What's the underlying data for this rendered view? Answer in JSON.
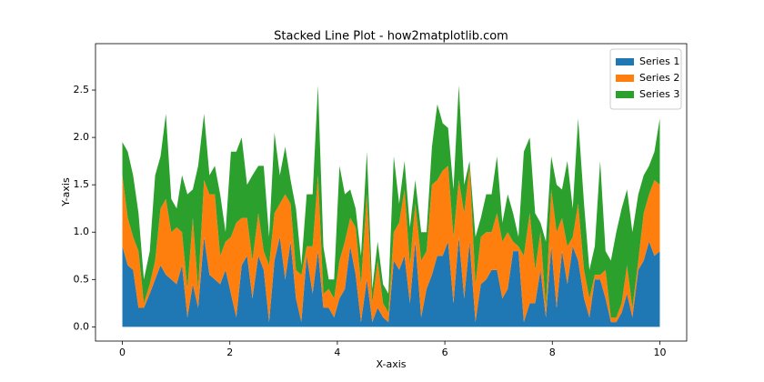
{
  "chart_data": {
    "type": "stackplot",
    "title": "Stacked Line Plot - how2matplotlib.com",
    "x_label": "X-axis",
    "y_label": "Y-axis",
    "x": [
      0,
      0.1,
      0.2,
      0.3,
      0.4,
      0.51,
      0.61,
      0.71,
      0.81,
      0.91,
      1.01,
      1.11,
      1.21,
      1.31,
      1.41,
      1.52,
      1.62,
      1.72,
      1.82,
      1.92,
      2.02,
      2.12,
      2.22,
      2.32,
      2.42,
      2.53,
      2.63,
      2.73,
      2.83,
      2.93,
      3.03,
      3.13,
      3.23,
      3.33,
      3.43,
      3.54,
      3.64,
      3.74,
      3.84,
      3.94,
      4.04,
      4.14,
      4.24,
      4.34,
      4.44,
      4.55,
      4.65,
      4.75,
      4.85,
      4.95,
      5.05,
      5.15,
      5.25,
      5.35,
      5.45,
      5.56,
      5.66,
      5.76,
      5.86,
      5.96,
      6.06,
      6.16,
      6.26,
      6.36,
      6.46,
      6.57,
      6.67,
      6.77,
      6.87,
      6.97,
      7.07,
      7.17,
      7.27,
      7.37,
      7.47,
      7.58,
      7.68,
      7.78,
      7.88,
      7.98,
      8.08,
      8.18,
      8.28,
      8.38,
      8.48,
      8.59,
      8.69,
      8.79,
      8.89,
      8.99,
      9.09,
      9.19,
      9.29,
      9.39,
      9.49,
      9.6,
      9.7,
      9.8,
      9.9,
      10
    ],
    "series": [
      {
        "name": "Series 1",
        "color": "#1f77b4",
        "values": [
          0.85,
          0.65,
          0.6,
          0.2,
          0.2,
          0.35,
          0.5,
          0.65,
          0.55,
          0.5,
          0.45,
          0.65,
          0.1,
          0.45,
          0.2,
          0.95,
          0.55,
          0.5,
          0.45,
          0.6,
          0.35,
          0.1,
          0.65,
          0.75,
          0.3,
          0.75,
          0.6,
          0.05,
          0.7,
          0.95,
          0.5,
          0.9,
          0.3,
          0.05,
          0.75,
          0.35,
          0.8,
          0.2,
          0.2,
          0.1,
          0.3,
          0.4,
          0.85,
          0.55,
          0.05,
          0.5,
          0.05,
          0.2,
          0.1,
          0.05,
          0.7,
          0.6,
          0.75,
          0.25,
          0.9,
          0.1,
          0.4,
          0.55,
          0.75,
          0.75,
          0.9,
          0.25,
          0.95,
          0.3,
          0.9,
          0.05,
          0.45,
          0.5,
          0.6,
          0.6,
          0.3,
          0.4,
          0.8,
          0.8,
          0.05,
          0.25,
          0.25,
          0.6,
          0.1,
          0.85,
          0.2,
          0.8,
          0.45,
          0.85,
          0.7,
          0.3,
          0.1,
          0.5,
          0.5,
          0.3,
          0.05,
          0.05,
          0.15,
          0.35,
          0.1,
          0.6,
          0.7,
          0.9,
          0.75,
          0.8
        ]
      },
      {
        "name": "Series 2",
        "color": "#ff7f0e",
        "values": [
          0.75,
          0.5,
          0.35,
          0.6,
          0.05,
          0.1,
          0.2,
          0.6,
          0.8,
          0.5,
          0.6,
          0.35,
          0.3,
          0.7,
          0.2,
          0.6,
          0.85,
          0.9,
          0.3,
          0.3,
          0.6,
          1.0,
          0.5,
          0.4,
          0.4,
          0.45,
          0.2,
          0.6,
          0.5,
          0.35,
          0.9,
          0.4,
          0.3,
          0.5,
          0.1,
          0.5,
          0.8,
          0.15,
          0.2,
          0.2,
          0.4,
          0.5,
          0.3,
          0.5,
          0.4,
          0.9,
          0.2,
          0.5,
          0.15,
          0.1,
          0.3,
          0.5,
          0.7,
          0.4,
          0.4,
          0.6,
          0.4,
          0.95,
          0.8,
          0.9,
          0.8,
          0.7,
          0.6,
          0.9,
          0.8,
          0.4,
          0.5,
          0.5,
          0.4,
          0.6,
          0.6,
          0.6,
          0.1,
          0.05,
          0.7,
          0.95,
          0.35,
          0.4,
          0.1,
          0.6,
          0.8,
          0.35,
          0.4,
          0.1,
          0.6,
          0.3,
          0.2,
          0.05,
          0.05,
          0.3,
          0.05,
          0.05,
          0.1,
          0.3,
          0.1,
          0.1,
          0.5,
          0.5,
          0.8,
          0.7
        ]
      },
      {
        "name": "Series 3",
        "color": "#2ca02c",
        "values": [
          0.35,
          0.7,
          0.65,
          0.4,
          0.25,
          0.35,
          0.9,
          0.55,
          0.9,
          0.35,
          0.2,
          0.6,
          1.0,
          0.3,
          1.3,
          0.7,
          0.2,
          0.3,
          0.65,
          0.1,
          0.9,
          0.75,
          0.85,
          0.35,
          0.9,
          0.5,
          0.9,
          0.3,
          0.85,
          0.3,
          0.5,
          0.25,
          0.65,
          0.1,
          0.55,
          0.55,
          0.95,
          0.5,
          0.1,
          0.2,
          1.0,
          0.5,
          0.3,
          0.2,
          0.3,
          0.45,
          0.15,
          0.2,
          0.2,
          0.2,
          0.8,
          0.2,
          0.3,
          0.4,
          0.25,
          0.3,
          0.2,
          0.4,
          0.8,
          0.5,
          0.4,
          0.5,
          1.0,
          0.3,
          0.05,
          0.5,
          0.2,
          0.4,
          0.4,
          0.6,
          0.2,
          0.4,
          0.3,
          0.1,
          1.1,
          0.8,
          0.6,
          0.1,
          0.7,
          0.35,
          0.5,
          0.3,
          0.9,
          0.3,
          0.9,
          0.7,
          0.3,
          0.3,
          1.2,
          0.2,
          0.6,
          0.9,
          1.0,
          0.8,
          0.8,
          0.7,
          0.4,
          0.3,
          0.3,
          0.7
        ]
      }
    ],
    "xlim": [
      -0.5,
      10.5
    ],
    "ylim": [
      -0.15,
      2.99
    ],
    "xticks": [
      0,
      2,
      4,
      6,
      8,
      10
    ],
    "yticks": [
      {
        "value": 0,
        "label": "0.0"
      },
      0.5,
      {
        "value": 1,
        "label": "1.0"
      },
      1.5,
      {
        "value": 2,
        "label": "2.0"
      },
      2.5
    ],
    "grid": false,
    "legend": "upper right"
  }
}
